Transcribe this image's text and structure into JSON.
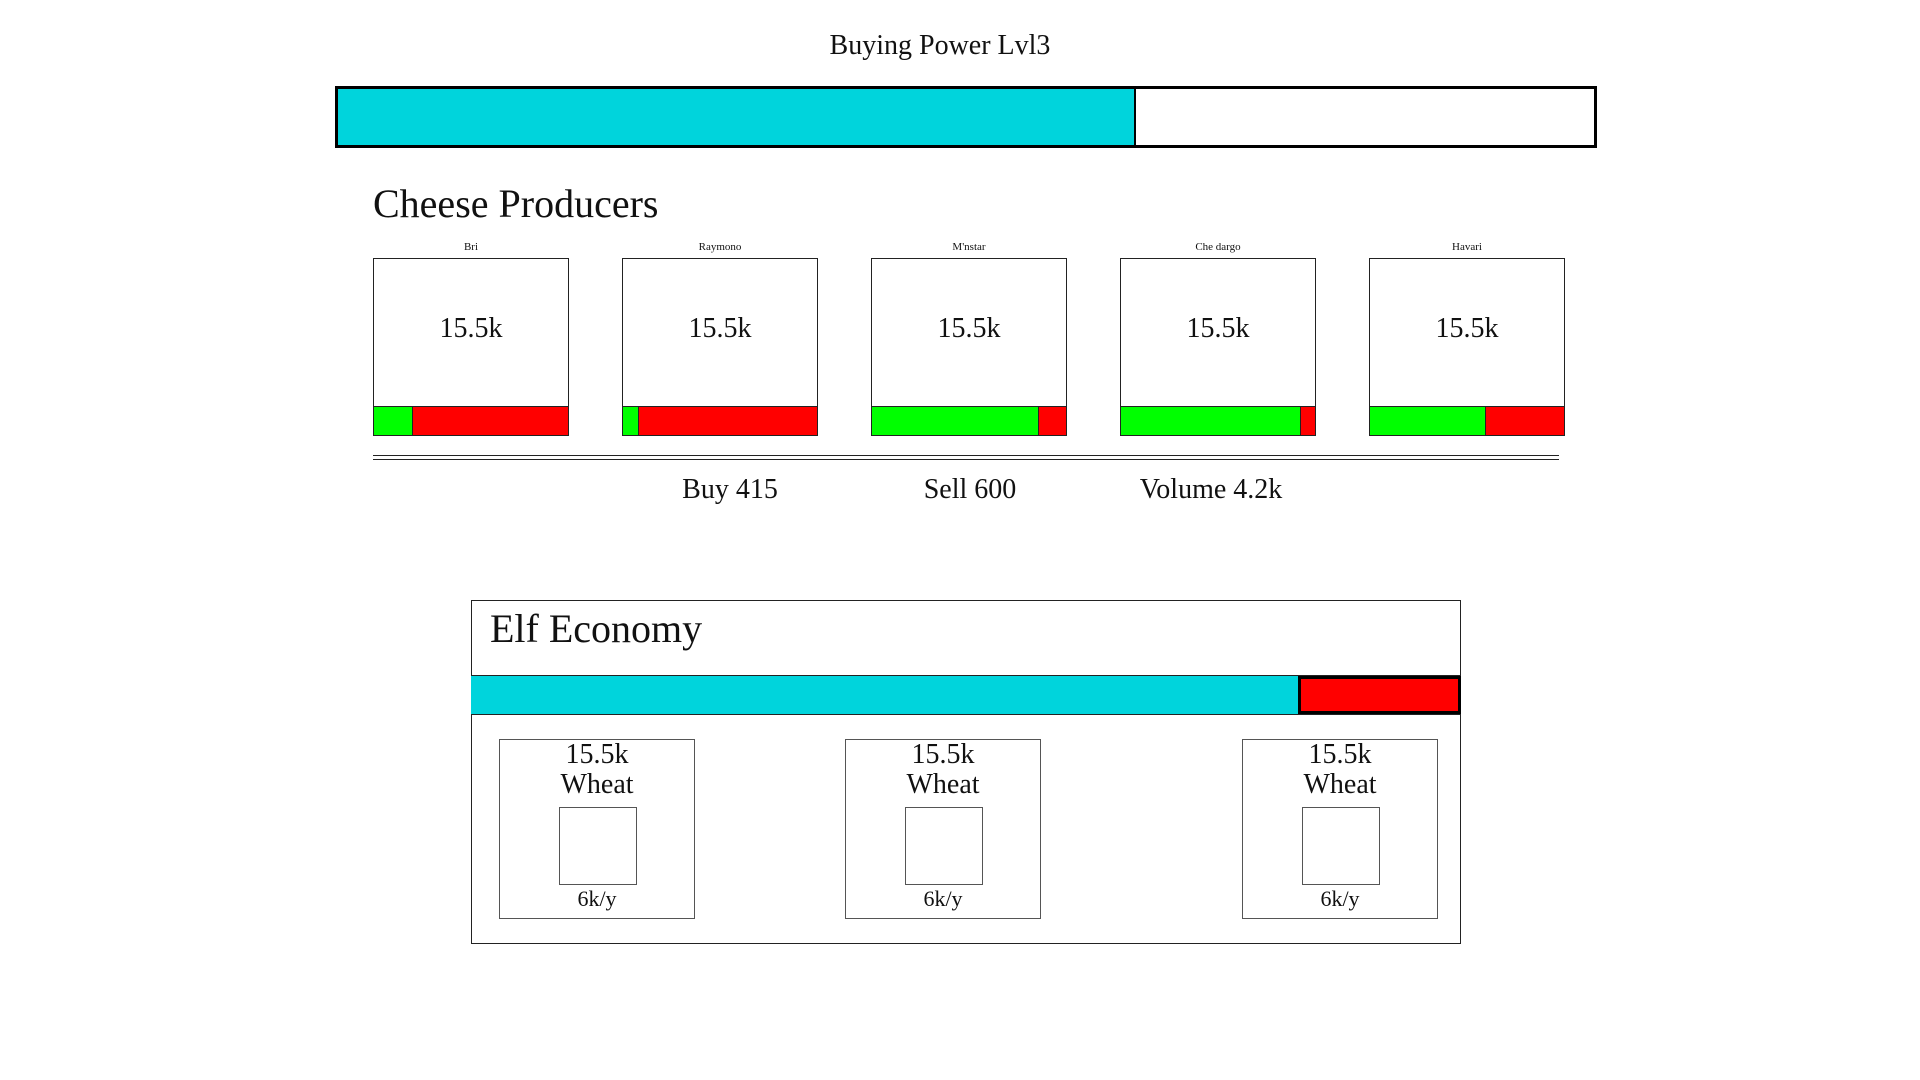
{
  "colors": {
    "accent": "#00d4dc",
    "positive": "#00ff00",
    "negative": "#ff0000",
    "border": "#000000"
  },
  "buying_power": {
    "title": "Buying Power Lvl3",
    "progress": 0.635
  },
  "cheese": {
    "title": "Cheese Producers",
    "producers": [
      {
        "name": "Bri",
        "value": "15.5k",
        "green_fraction": 0.2
      },
      {
        "name": "Raymono",
        "value": "15.5k",
        "green_fraction": 0.08
      },
      {
        "name": "M'nstar",
        "value": "15.5k",
        "green_fraction": 0.86
      },
      {
        "name": "Che dargo",
        "value": "15.5k",
        "green_fraction": 0.93
      },
      {
        "name": "Havari",
        "value": "15.5k",
        "green_fraction": 0.6
      }
    ],
    "stats": {
      "buy": "Buy 415",
      "sell": "Sell 600",
      "volume": "Volume 4.2k"
    }
  },
  "elf_economy": {
    "title": "Elf Economy",
    "progress": 0.835,
    "crops": [
      {
        "value": "15.5k",
        "name": "Wheat",
        "rate": "6k/y"
      },
      {
        "value": "15.5k",
        "name": "Wheat",
        "rate": "6k/y"
      },
      {
        "value": "15.5k",
        "name": "Wheat",
        "rate": "6k/y"
      }
    ]
  }
}
